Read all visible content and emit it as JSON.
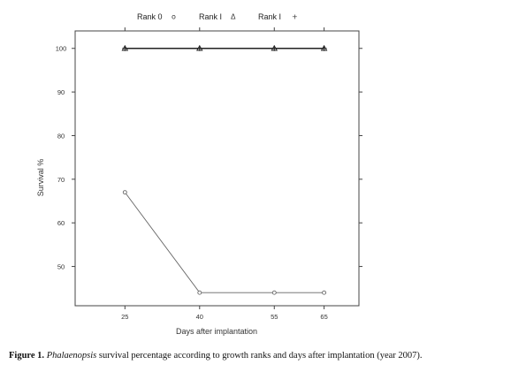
{
  "caption": {
    "label": "Figure 1.",
    "species": "Phalaenopsis",
    "text": " survival percentage according to growth ranks and days after implantation (year 2007)."
  },
  "chart_data": {
    "type": "line",
    "title": "",
    "xlabel": "Days after implantation",
    "ylabel": "Survival %",
    "x": [
      25,
      40,
      55,
      65
    ],
    "x_tick_labels": [
      "25",
      "40",
      "55",
      "65"
    ],
    "y_ticks": [
      50,
      60,
      70,
      80,
      90,
      100
    ],
    "y_tick_labels": [
      "50",
      "60",
      "70",
      "80",
      "90",
      "100"
    ],
    "xlim": [
      15,
      72
    ],
    "ylim": [
      41,
      104
    ],
    "grid": false,
    "legend_position": "top",
    "series": [
      {
        "name": "Rank 0",
        "marker": "circle",
        "marker_glyph": "o",
        "values": [
          67,
          44,
          44,
          44
        ],
        "color": "#666666"
      },
      {
        "name": "Rank I",
        "marker": "triangle",
        "marker_glyph": "Δ",
        "values": [
          100,
          100,
          100,
          100
        ],
        "color": "#222222"
      },
      {
        "name": "Rank I",
        "marker": "plus",
        "marker_glyph": "+",
        "values": [
          100,
          100,
          100,
          100
        ],
        "color": "#222222"
      }
    ]
  }
}
